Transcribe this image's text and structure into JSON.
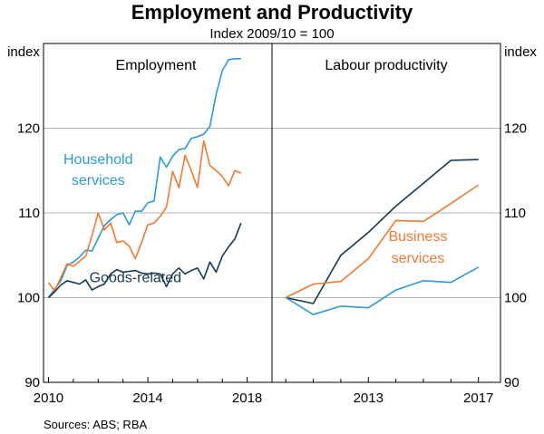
{
  "chart_data": {
    "type": "line",
    "title": "Employment and Productivity",
    "subtitle": "Index 2009/10 = 100",
    "y_unit_label": "index",
    "ylim": [
      90,
      130
    ],
    "yticks": [
      90,
      100,
      110,
      120
    ],
    "source": "Sources: ABS; RBA",
    "colors": {
      "household": "#2b9ad4",
      "business": "#f07a30",
      "goods": "#163a4e",
      "axis": "#000000",
      "grid": "#b4b4b4"
    },
    "panels": [
      {
        "title": "Employment",
        "xlim": [
          2009.8,
          2019.0
        ],
        "xticks": [
          2010,
          2014,
          2018
        ],
        "xtick_labels": [
          "2010",
          "2014",
          "2018"
        ],
        "annotations": [
          {
            "text": "Household",
            "series": "household",
            "x": 2012.0,
            "y": 115.8
          },
          {
            "text": "services",
            "series": "household",
            "x": 2012.0,
            "y": 113.3
          },
          {
            "text": "Goods-related",
            "series": "goods",
            "x": 2013.5,
            "y": 101.8
          }
        ],
        "series": [
          {
            "name": "Household services",
            "key": "household",
            "x": [
              2010.0,
              2010.25,
              2010.5,
              2010.75,
              2011.0,
              2011.25,
              2011.5,
              2011.75,
              2012.0,
              2012.25,
              2012.5,
              2012.75,
              2013.0,
              2013.25,
              2013.5,
              2013.75,
              2014.0,
              2014.25,
              2014.5,
              2014.75,
              2015.0,
              2015.25,
              2015.5,
              2015.75,
              2016.0,
              2016.25,
              2016.5,
              2016.75,
              2017.0,
              2017.25,
              2017.5,
              2017.75
            ],
            "values": [
              100.0,
              101.0,
              102.0,
              103.8,
              104.2,
              104.8,
              105.6,
              105.5,
              107.0,
              108.5,
              109.2,
              109.8,
              110.0,
              108.6,
              110.2,
              110.2,
              111.2,
              111.4,
              116.6,
              115.4,
              116.7,
              117.5,
              117.6,
              118.8,
              119.0,
              119.3,
              120.2,
              124.0,
              126.8,
              128.1,
              128.2,
              128.2
            ]
          },
          {
            "name": "Business services",
            "key": "business",
            "x": [
              2010.0,
              2010.25,
              2010.5,
              2010.75,
              2011.0,
              2011.25,
              2011.5,
              2011.75,
              2012.0,
              2012.25,
              2012.5,
              2012.75,
              2013.0,
              2013.25,
              2013.5,
              2013.75,
              2014.0,
              2014.25,
              2014.5,
              2014.75,
              2015.0,
              2015.25,
              2015.5,
              2015.75,
              2016.0,
              2016.25,
              2016.5,
              2016.75,
              2017.0,
              2017.25,
              2017.5,
              2017.75
            ],
            "values": [
              101.8,
              100.8,
              102.4,
              104.0,
              103.7,
              104.3,
              104.9,
              107.3,
              110.0,
              108.0,
              108.8,
              106.5,
              106.7,
              106.1,
              104.6,
              106.5,
              108.6,
              108.8,
              109.6,
              110.7,
              114.9,
              113.0,
              116.8,
              115.0,
              113.0,
              118.5,
              115.6,
              115.0,
              114.3,
              113.2,
              115.0,
              114.7
            ]
          },
          {
            "name": "Goods-related",
            "key": "goods",
            "x": [
              2010.0,
              2010.25,
              2010.5,
              2010.75,
              2011.0,
              2011.25,
              2011.5,
              2011.75,
              2012.0,
              2012.25,
              2012.5,
              2012.75,
              2013.0,
              2013.25,
              2013.5,
              2013.75,
              2014.0,
              2014.25,
              2014.5,
              2014.75,
              2015.0,
              2015.25,
              2015.5,
              2015.75,
              2016.0,
              2016.25,
              2016.5,
              2016.75,
              2017.0,
              2017.25,
              2017.5,
              2017.75
            ],
            "values": [
              100.0,
              100.7,
              101.5,
              102.0,
              101.8,
              101.6,
              102.1,
              100.9,
              101.3,
              101.6,
              102.8,
              103.3,
              103.0,
              103.1,
              103.2,
              102.9,
              102.8,
              102.9,
              102.8,
              101.3,
              102.8,
              103.5,
              102.8,
              103.2,
              103.5,
              102.2,
              104.2,
              103.0,
              104.9,
              106.0,
              106.9,
              108.8
            ]
          }
        ]
      },
      {
        "title": "Labour productivity",
        "xlim": [
          2009.5,
          2017.8
        ],
        "xticks": [
          2013,
          2017
        ],
        "xtick_labels": [
          "2013",
          "2017"
        ],
        "annotations": [
          {
            "text": "Business",
            "series": "business",
            "x": 2014.8,
            "y": 106.7
          },
          {
            "text": "services",
            "series": "business",
            "x": 2014.8,
            "y": 104.1
          }
        ],
        "series": [
          {
            "name": "Goods-related",
            "key": "goods",
            "x": [
              2010,
              2011,
              2012,
              2013,
              2014,
              2015,
              2016,
              2017
            ],
            "values": [
              100.0,
              99.3,
              105.0,
              107.7,
              110.8,
              113.5,
              116.2,
              116.3
            ]
          },
          {
            "name": "Business services",
            "key": "business",
            "x": [
              2010,
              2011,
              2012,
              2013,
              2014,
              2015,
              2016,
              2017
            ],
            "values": [
              100.0,
              101.6,
              101.9,
              104.6,
              109.1,
              109.0,
              111.1,
              113.3
            ]
          },
          {
            "name": "Household services",
            "key": "household",
            "x": [
              2010,
              2011,
              2012,
              2013,
              2014,
              2015,
              2016,
              2017
            ],
            "values": [
              100.0,
              98.0,
              99.0,
              98.8,
              100.9,
              102.0,
              101.8,
              103.6
            ]
          }
        ]
      }
    ]
  }
}
